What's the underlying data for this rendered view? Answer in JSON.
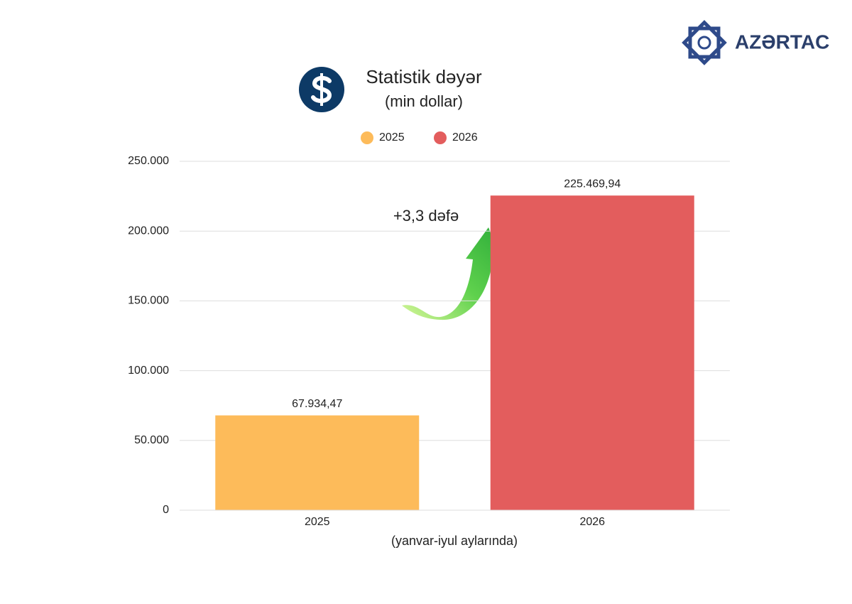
{
  "brand": "AZƏRTAC",
  "chart_data": {
    "type": "bar",
    "title": "Statistik dəyər",
    "subtitle": "(min dollar)",
    "x_label": "(yanvar-iyul aylarında)",
    "annotation": "+3,3 dəfə",
    "categories": [
      "2025",
      "2026"
    ],
    "series": [
      {
        "name": "2025",
        "color": "#fdbb5a",
        "values": [
          67934.47,
          null
        ],
        "value_labels": [
          "67.934,47",
          null
        ]
      },
      {
        "name": "2026",
        "color": "#e35d5d",
        "values": [
          null,
          225469.94
        ],
        "value_labels": [
          null,
          "225.469,94"
        ]
      }
    ],
    "ylim": [
      0,
      250000
    ],
    "yticks": [
      0,
      {
        "value": 50000,
        "label": "50.000"
      },
      {
        "value": 100000,
        "label": "100.000"
      },
      {
        "value": 150000,
        "label": "150.000"
      },
      {
        "value": 200000,
        "label": "200.000"
      },
      {
        "value": 250000,
        "label": "250.000"
      }
    ],
    "grid": true,
    "legend": "top"
  }
}
